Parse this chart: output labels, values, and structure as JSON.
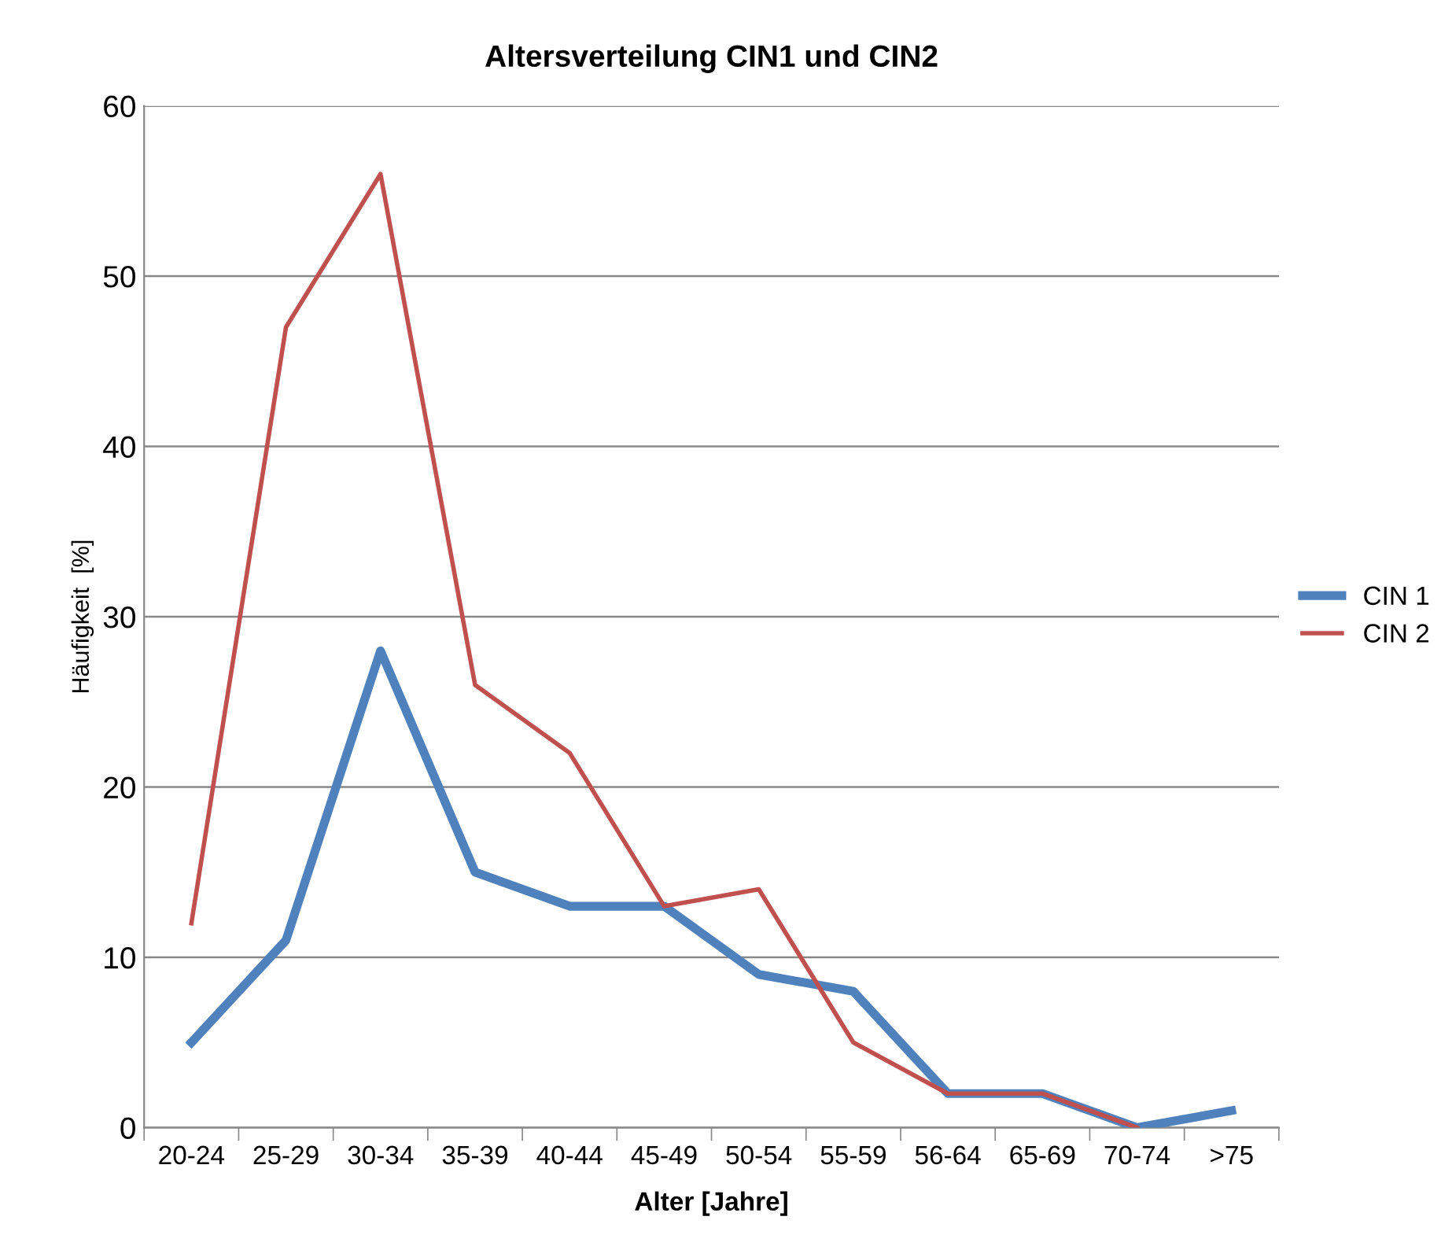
{
  "chart_data": {
    "type": "line",
    "title": "Altersverteilung CIN1 und CIN2",
    "xlabel": "Alter [Jahre]",
    "ylabel": "Häufigkeit  [%]",
    "categories": [
      "20-24",
      "25-29",
      "30-34",
      "35-39",
      "40-44",
      "45-49",
      "50-54",
      "55-59",
      "56-64",
      "65-69",
      "70-74",
      ">75"
    ],
    "series": [
      {
        "name": "CIN 1",
        "color": "#4f81bd",
        "values": [
          5,
          11,
          28,
          15,
          13,
          13,
          9,
          8,
          2,
          2,
          0,
          1
        ]
      },
      {
        "name": "CIN 2",
        "color": "#c0504d",
        "values": [
          12,
          47,
          56,
          26,
          22,
          13,
          14,
          5,
          2,
          2,
          0,
          null
        ]
      }
    ],
    "ylim": [
      0,
      60
    ],
    "yticks": [
      0,
      10,
      20,
      30,
      40,
      50,
      60
    ],
    "grid": "y",
    "legend": "right",
    "marker": "none",
    "line_style": "solid"
  }
}
